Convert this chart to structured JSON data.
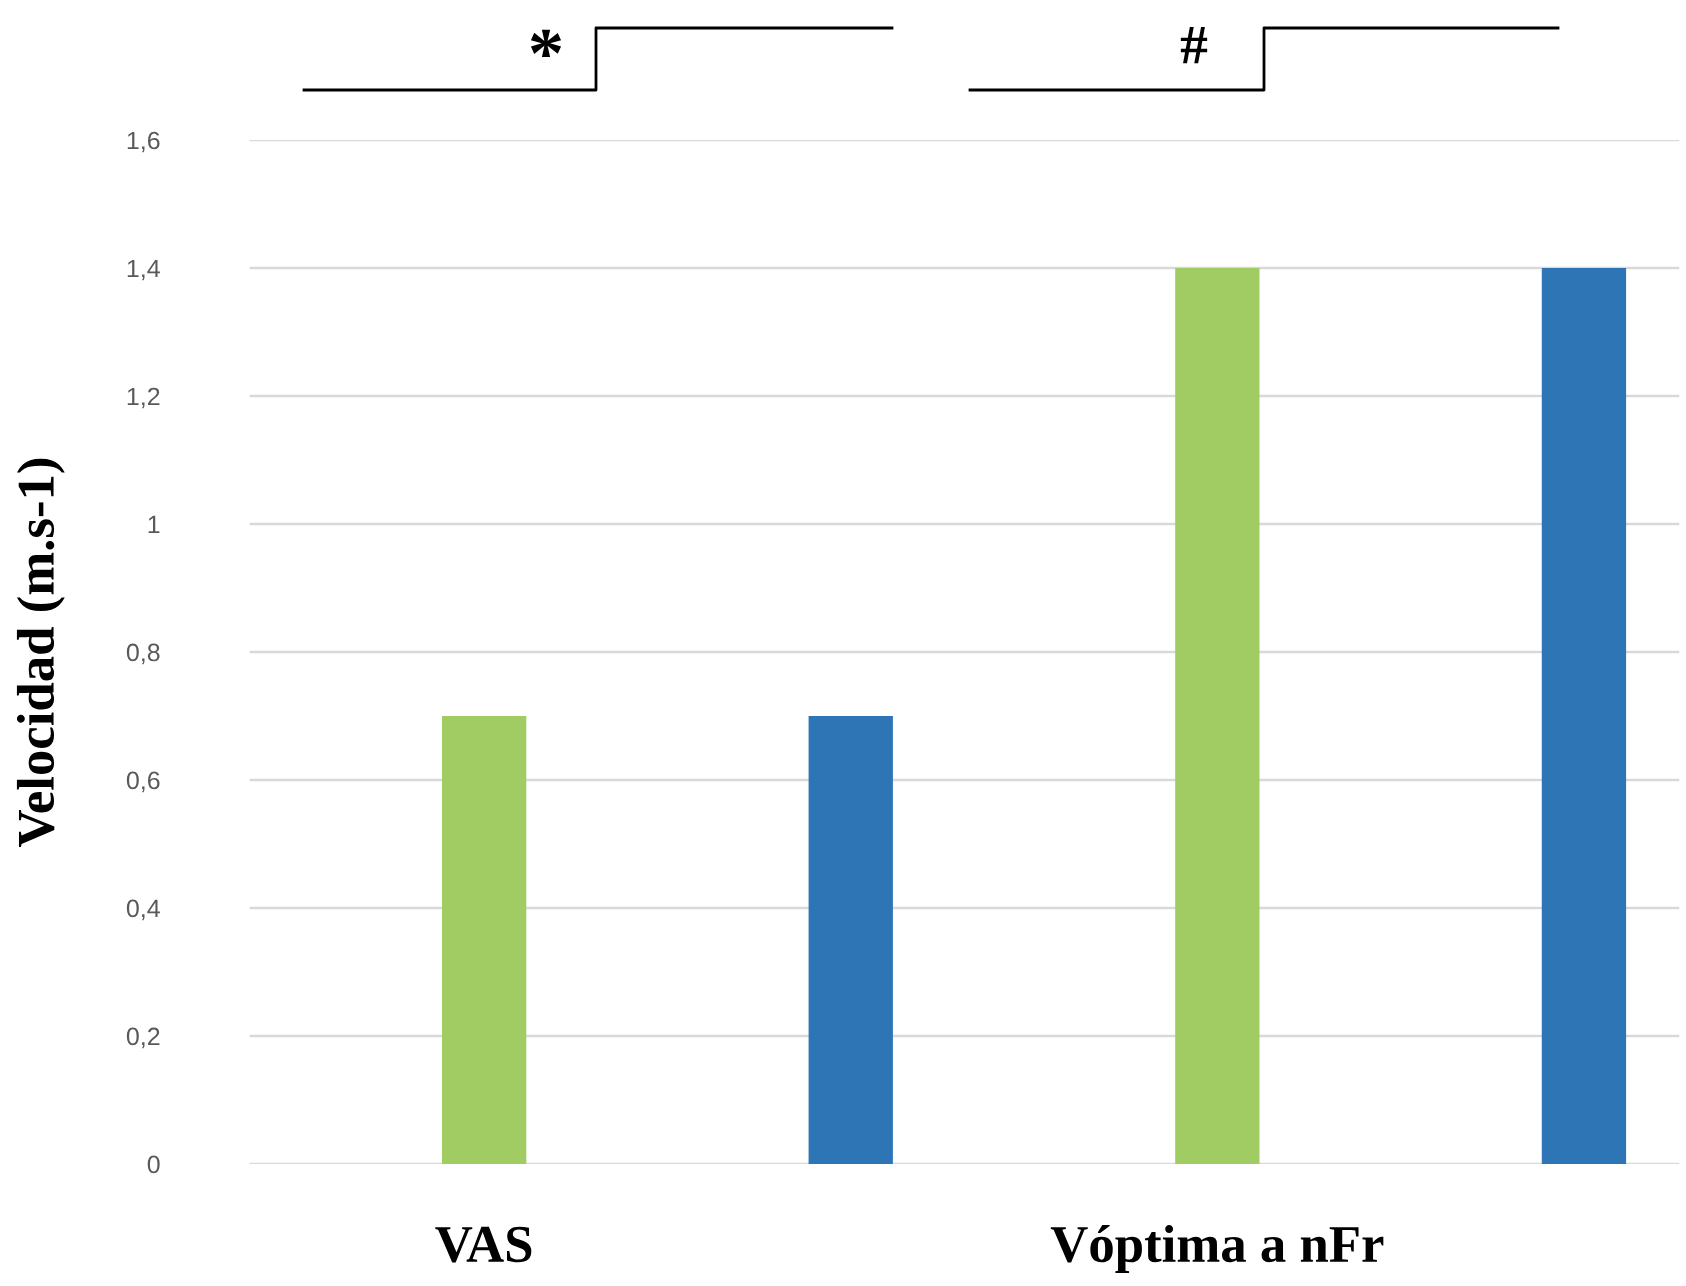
{
  "chart_data": {
    "type": "bar",
    "ylabel": "Velocidad (m.s-1)",
    "categories": [
      "VAS",
      null,
      "Vóptima a nFr",
      null
    ],
    "values": [
      0.7,
      0.7,
      1.4,
      1.4
    ],
    "colors": [
      "#a0cc63",
      "#2e75b6",
      "#a0cc63",
      "#2e75b6"
    ],
    "ylim": [
      0,
      1.6
    ],
    "yticks": [
      0,
      {
        "value": 0.2,
        "label": "0,2"
      },
      {
        "value": 0.4,
        "label": "0,4"
      },
      {
        "value": 0.6,
        "label": "0,6"
      },
      {
        "value": 0.8,
        "label": "0,8"
      },
      1,
      {
        "value": 1.2,
        "label": "1,2"
      },
      {
        "value": 1.4,
        "label": "1,4"
      },
      {
        "value": 1.6,
        "label": "1,6"
      }
    ],
    "grid": "y",
    "annotations": [
      "*",
      "#"
    ]
  }
}
